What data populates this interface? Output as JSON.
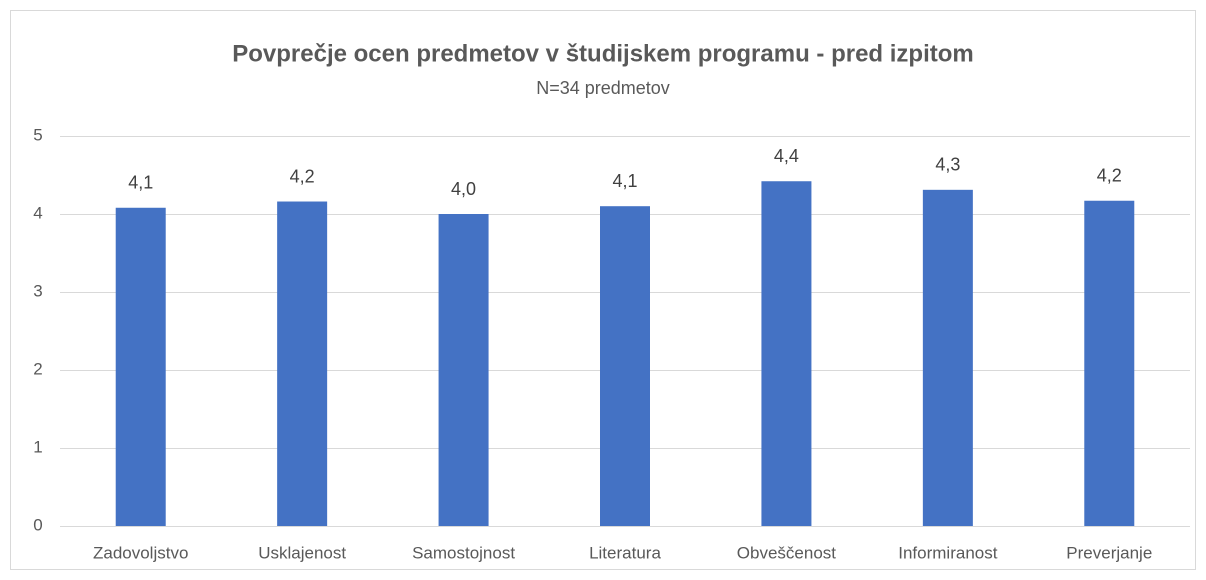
{
  "chart_data": {
    "type": "bar",
    "title": "Povprečje ocen predmetov v študijskem programu - pred izpitom",
    "subtitle": "N=34 predmetov",
    "categories": [
      "Zadovoljstvo",
      "Usklajenost",
      "Samostojnost",
      "Literatura",
      "Obveščenost",
      "Informiranost",
      "Preverjanje"
    ],
    "values": [
      4.08,
      4.16,
      4.0,
      4.1,
      4.42,
      4.31,
      4.17
    ],
    "value_labels": [
      "4,1",
      "4,2",
      "4,0",
      "4,1",
      "4,4",
      "4,3",
      "4,2"
    ],
    "color": "#4472c4",
    "ylim": [
      0,
      5
    ],
    "yticks": [
      0,
      1,
      2,
      3,
      4,
      5
    ],
    "grid": true
  }
}
